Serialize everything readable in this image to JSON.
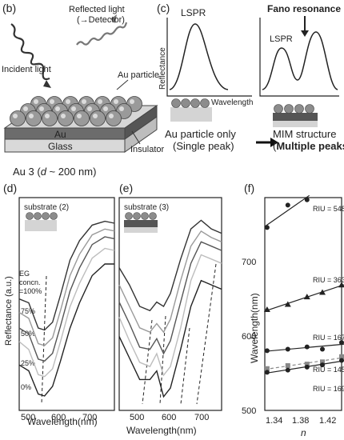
{
  "panel_b": {
    "label": "(b)",
    "reflected_light": "Reflected light",
    "detector": "(→Detector)",
    "incident_light": "Incident light",
    "au_particle": "Au particle",
    "au": "Au",
    "glass": "Glass",
    "insulator": "Insulator"
  },
  "panel_c": {
    "label": "(c)",
    "lspr": "LSPR",
    "fano": "Fano resonance",
    "lspr_small": "LSPR",
    "reflectance": "Reflectance",
    "wavelength": "Wavelength",
    "single_line1": "Au particle only",
    "single_line2": "(Single peak)",
    "mim_line1": "MIM structure",
    "mim_line2_a": "(",
    "mim_line2_b": "Multiple peaks",
    "mim_line2_c": ")"
  },
  "sample_title": {
    "prefix": "Au 3 (",
    "d": "d",
    "suffix": " ~ 200 nm)"
  },
  "panel_d": {
    "label": "(d)",
    "substrate": "substrate (2)",
    "ylabel": "Reflectance (a.u.)",
    "xlabel": "Wavelength(nm)",
    "legend_title": [
      "EG",
      "concn.",
      "=100%"
    ],
    "curve_labels": [
      "75%",
      "50%",
      "25%",
      "0%"
    ],
    "xticks": [
      "500",
      "600",
      "700"
    ]
  },
  "panel_e": {
    "label": "(e)",
    "substrate": "substrate (3)",
    "xlabel": "Wavelength(nm)",
    "xticks": [
      "500",
      "600",
      "700"
    ]
  },
  "panel_f": {
    "label": "(f)",
    "ylabel": "Wavelength(nm)",
    "xlabel": "n",
    "yticks": [
      "500",
      "600",
      "700"
    ],
    "xticks": [
      "1.34",
      "1.38",
      "1.42"
    ],
    "riu_labels": [
      "RIU = 548",
      "RIU = 363",
      "RIU = 167",
      "RIU = 145",
      "RIU = 169"
    ]
  },
  "colors": {
    "accent": "#222222",
    "gray": "#8a8a8a",
    "light": "#c9c9c9"
  },
  "chart_data": [
    {
      "type": "line",
      "title": "",
      "xlabel": "Wavelength(nm)",
      "ylabel": "Reflectance (a.u.)",
      "xlim": [
        470,
        770
      ],
      "series": [
        {
          "name": "=100%",
          "x": [
            470,
            500,
            530,
            550,
            575,
            600,
            630,
            660,
            700,
            740,
            770
          ],
          "y": [
            0.62,
            0.6,
            0.47,
            0.46,
            0.5,
            0.64,
            0.82,
            0.92,
            1.0,
            1.02,
            1.01
          ]
        },
        {
          "name": "75%",
          "x": [
            470,
            500,
            530,
            550,
            575,
            600,
            630,
            660,
            700,
            740,
            770
          ],
          "y": [
            0.55,
            0.52,
            0.39,
            0.38,
            0.42,
            0.56,
            0.74,
            0.85,
            0.95,
            0.98,
            0.97
          ]
        },
        {
          "name": "50%",
          "x": [
            470,
            500,
            530,
            550,
            575,
            600,
            630,
            660,
            700,
            740,
            770
          ],
          "y": [
            0.47,
            0.44,
            0.31,
            0.3,
            0.34,
            0.48,
            0.66,
            0.78,
            0.9,
            0.94,
            0.93
          ]
        },
        {
          "name": "25%",
          "x": [
            470,
            500,
            530,
            550,
            575,
            600,
            630,
            660,
            700,
            740,
            770
          ],
          "y": [
            0.4,
            0.36,
            0.23,
            0.22,
            0.26,
            0.4,
            0.58,
            0.7,
            0.83,
            0.88,
            0.87
          ]
        },
        {
          "name": "0%",
          "x": [
            470,
            500,
            530,
            550,
            575,
            600,
            630,
            660,
            700,
            740,
            770
          ],
          "y": [
            0.28,
            0.25,
            0.13,
            0.12,
            0.17,
            0.3,
            0.47,
            0.6,
            0.74,
            0.8,
            0.8
          ]
        }
      ]
    },
    {
      "type": "line",
      "title": "",
      "xlabel": "Wavelength(nm)",
      "ylabel": "",
      "xlim": [
        470,
        770
      ],
      "series": [
        {
          "name": "",
          "x": [
            470,
            500,
            530,
            560,
            580,
            600,
            620,
            650,
            680,
            710,
            740,
            770
          ],
          "y": [
            0.78,
            0.7,
            0.6,
            0.58,
            0.62,
            0.6,
            0.66,
            0.82,
            0.96,
            1.0,
            0.96,
            0.94
          ]
        },
        {
          "name": "",
          "x": [
            470,
            500,
            530,
            560,
            580,
            600,
            620,
            650,
            680,
            710,
            740,
            770
          ],
          "y": [
            0.7,
            0.6,
            0.5,
            0.48,
            0.52,
            0.48,
            0.54,
            0.72,
            0.88,
            0.95,
            0.92,
            0.9
          ]
        },
        {
          "name": "",
          "x": [
            470,
            500,
            530,
            560,
            580,
            600,
            620,
            650,
            680,
            710,
            740,
            770
          ],
          "y": [
            0.62,
            0.52,
            0.41,
            0.4,
            0.45,
            0.38,
            0.44,
            0.62,
            0.8,
            0.9,
            0.88,
            0.86
          ]
        },
        {
          "name": "",
          "x": [
            470,
            500,
            530,
            560,
            580,
            600,
            620,
            650,
            680,
            710,
            740,
            770
          ],
          "y": [
            0.55,
            0.44,
            0.34,
            0.32,
            0.38,
            0.28,
            0.32,
            0.5,
            0.72,
            0.84,
            0.82,
            0.8
          ]
        },
        {
          "name": "",
          "x": [
            470,
            500,
            530,
            560,
            580,
            600,
            620,
            650,
            680,
            710,
            740,
            770
          ],
          "y": [
            0.46,
            0.36,
            0.26,
            0.26,
            0.3,
            0.18,
            0.22,
            0.4,
            0.6,
            0.72,
            0.7,
            0.68
          ]
        }
      ]
    },
    {
      "type": "scatter",
      "title": "",
      "xlabel": "n",
      "ylabel": "Wavelength(nm)",
      "xlim": [
        1.33,
        1.43
      ],
      "ylim": [
        500,
        785
      ],
      "series": [
        {
          "name": "RIU = 548",
          "marker": "circle",
          "x": [
            1.333,
            1.36,
            1.385
          ],
          "y": [
            745,
            775,
            782
          ]
        },
        {
          "name": "RIU = 363",
          "marker": "triangle",
          "x": [
            1.333,
            1.36,
            1.385,
            1.405,
            1.43
          ],
          "y": [
            635,
            642,
            652,
            658,
            668
          ]
        },
        {
          "name": "RIU = 167",
          "marker": "circle",
          "x": [
            1.333,
            1.36,
            1.385,
            1.405,
            1.43
          ],
          "y": [
            580,
            582,
            585,
            582,
            591
          ]
        },
        {
          "name": "RIU = 145",
          "marker": "square",
          "x": [
            1.333,
            1.36,
            1.385,
            1.405,
            1.43
          ],
          "y": [
            556,
            560,
            562,
            565,
            572
          ]
        },
        {
          "name": "RIU = 169",
          "marker": "circle",
          "x": [
            1.333,
            1.36,
            1.385,
            1.405,
            1.43
          ],
          "y": [
            551,
            554,
            558,
            561,
            567
          ]
        }
      ]
    }
  ]
}
